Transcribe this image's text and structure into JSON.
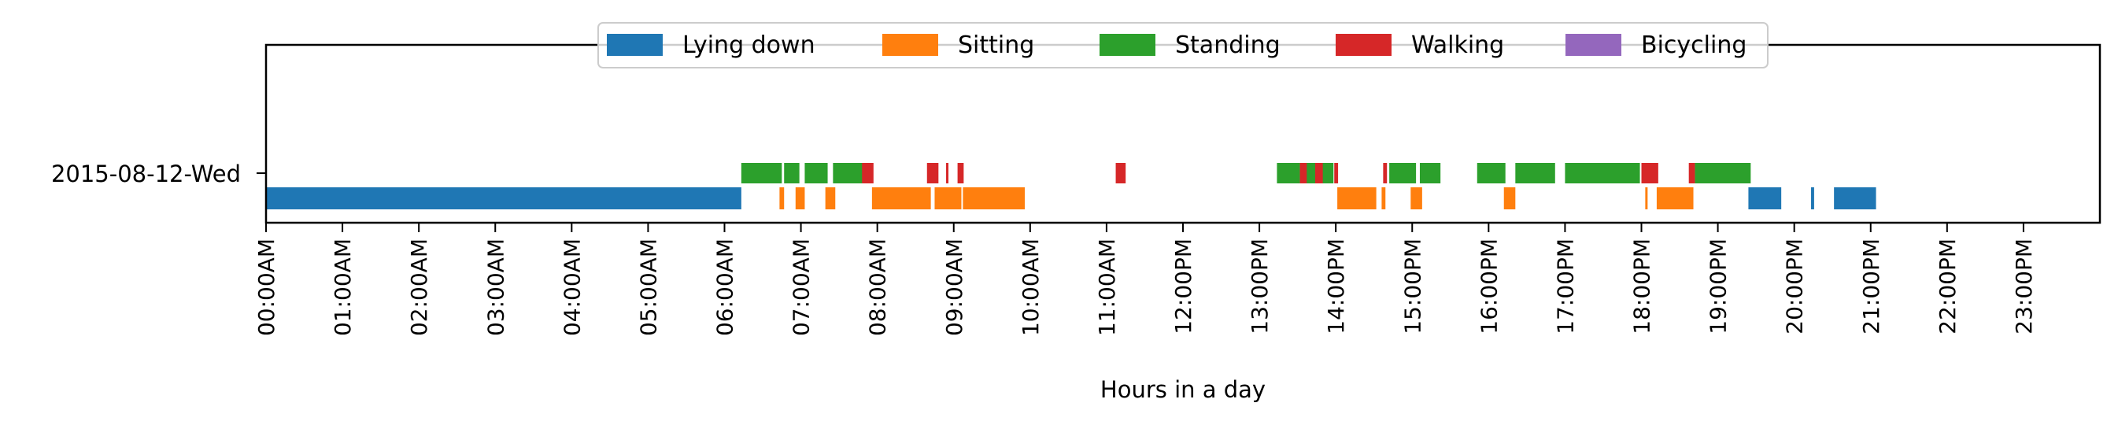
{
  "chart_data": {
    "type": "timeline",
    "xlabel": "Hours in a day",
    "ylabel": "",
    "xlim": [
      0,
      24
    ],
    "row_label": "2015-08-12-Wed",
    "grid": false,
    "legend_placement": "top-center",
    "x_ticks": [
      "00:00AM",
      "01:00AM",
      "02:00AM",
      "03:00AM",
      "04:00AM",
      "05:00AM",
      "06:00AM",
      "07:00AM",
      "08:00AM",
      "09:00AM",
      "10:00AM",
      "11:00AM",
      "12:00PM",
      "13:00PM",
      "14:00PM",
      "15:00PM",
      "16:00PM",
      "17:00PM",
      "18:00PM",
      "19:00PM",
      "20:00PM",
      "21:00PM",
      "22:00PM",
      "23:00PM"
    ],
    "series": [
      {
        "name": "Lying down",
        "color": "#1f77b4",
        "lane": 0,
        "intervals": [
          [
            0.0,
            6.22
          ],
          [
            19.4,
            19.83
          ],
          [
            20.22,
            20.26
          ],
          [
            20.52,
            21.07
          ]
        ]
      },
      {
        "name": "Sitting",
        "color": "#ff7f0e",
        "lane": 0,
        "intervals": [
          [
            6.72,
            6.78
          ],
          [
            6.93,
            7.05
          ],
          [
            7.32,
            7.45
          ],
          [
            7.93,
            8.7
          ],
          [
            8.75,
            9.1
          ],
          [
            9.12,
            9.93
          ],
          [
            14.02,
            14.53
          ],
          [
            14.6,
            14.65
          ],
          [
            14.98,
            15.13
          ],
          [
            16.2,
            16.35
          ],
          [
            18.05,
            18.07
          ],
          [
            18.2,
            18.68
          ]
        ]
      },
      {
        "name": "Standing",
        "color": "#2ca02c",
        "lane": 1,
        "intervals": [
          [
            6.22,
            6.75
          ],
          [
            6.78,
            6.98
          ],
          [
            7.05,
            7.35
          ],
          [
            7.42,
            7.85
          ],
          [
            13.23,
            13.53
          ],
          [
            13.58,
            13.77
          ],
          [
            13.82,
            13.97
          ],
          [
            14.7,
            15.05
          ],
          [
            15.1,
            15.37
          ],
          [
            15.85,
            16.22
          ],
          [
            16.35,
            16.87
          ],
          [
            17.0,
            17.98
          ],
          [
            18.7,
            19.43
          ]
        ]
      },
      {
        "name": "Walking",
        "color": "#d62728",
        "lane": 1,
        "intervals": [
          [
            7.8,
            7.95
          ],
          [
            8.65,
            8.8
          ],
          [
            8.9,
            8.93
          ],
          [
            9.05,
            9.13
          ],
          [
            11.12,
            11.25
          ],
          [
            13.53,
            13.62
          ],
          [
            13.73,
            13.83
          ],
          [
            13.98,
            14.03
          ],
          [
            14.62,
            14.67
          ],
          [
            18.0,
            18.22
          ],
          [
            18.62,
            18.7
          ]
        ]
      },
      {
        "name": "Bicycling",
        "color": "#9467bd",
        "lane": 1,
        "intervals": []
      }
    ]
  }
}
